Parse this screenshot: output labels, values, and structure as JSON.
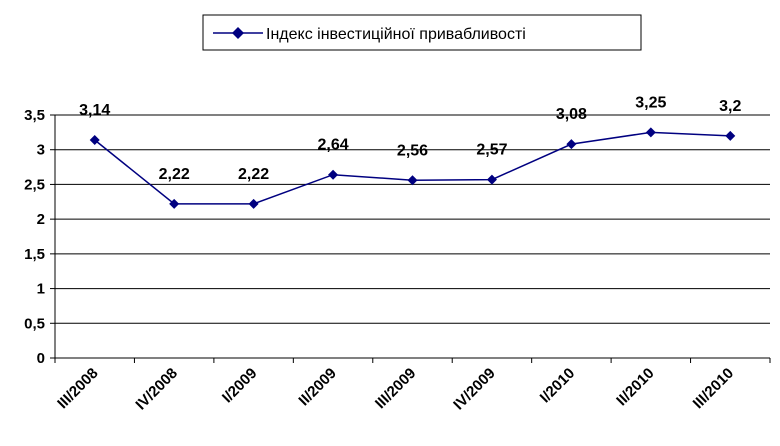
{
  "chart_data": {
    "type": "line",
    "categories": [
      "III/2008",
      "IV/2008",
      "I/2009",
      "II/2009",
      "III/2009",
      "IV/2009",
      "I/2010",
      "II/2010",
      "III/2010"
    ],
    "series": [
      {
        "name": "Індекс інвестиційної привабливості",
        "values": [
          3.14,
          2.22,
          2.22,
          2.64,
          2.56,
          2.57,
          3.08,
          3.25,
          3.2
        ],
        "labels": [
          "3,14",
          "2,22",
          "2,22",
          "2,64",
          "2,56",
          "2,57",
          "3,08",
          "3,25",
          "3,2"
        ],
        "color": "#000080"
      }
    ],
    "ylim": [
      0,
      3.5
    ],
    "yticks": [
      0,
      0.5,
      1,
      1.5,
      2,
      2.5,
      3,
      3.5
    ],
    "ytick_labels": [
      "0",
      "0,5",
      "1",
      "1,5",
      "2",
      "2,5",
      "3",
      "3,5"
    ],
    "grid": true,
    "legend_position": "top-center"
  }
}
